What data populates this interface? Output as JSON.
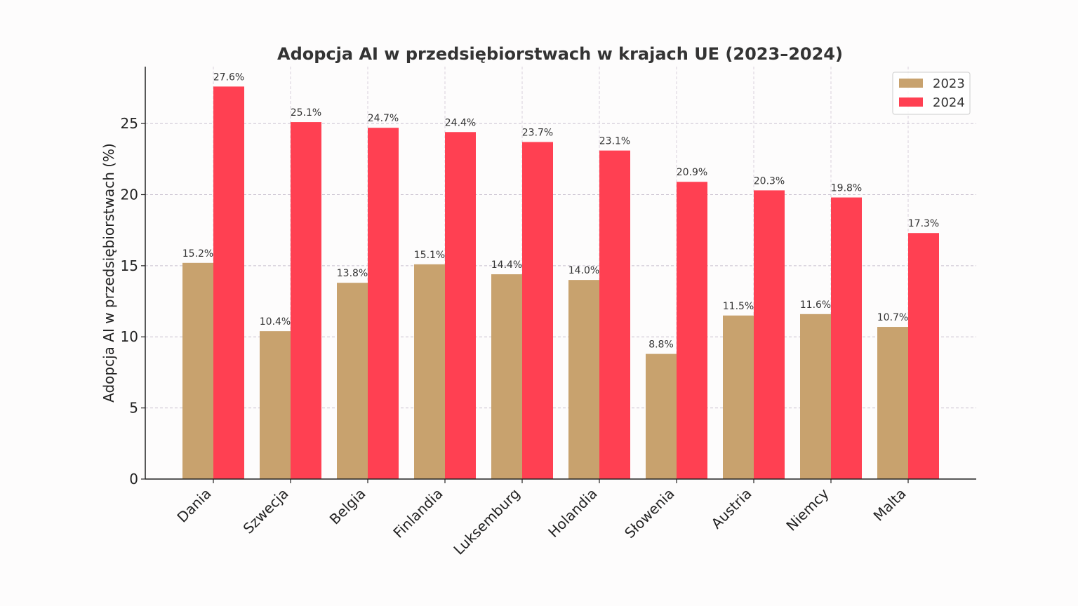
{
  "chart_data": {
    "type": "bar",
    "title": "Adopcja AI w przedsiębiorstwach w krajach UE (2023–2024)",
    "xlabel": "",
    "ylabel": "Adopcja AI w przedsiębiorstwach (%)",
    "ylim": [
      0,
      29
    ],
    "yticks": [
      "0",
      "5",
      "10",
      "15",
      "20",
      "25"
    ],
    "grid": true,
    "legend_position": "top-right",
    "categories": [
      "Dania",
      "Szwecja",
      "Belgia",
      "Finlandia",
      "Luksemburg",
      "Holandia",
      "Słowenia",
      "Austria",
      "Niemcy",
      "Malta"
    ],
    "series": [
      {
        "name": "2023",
        "color": "#c8a26e",
        "values": [
          15.2,
          10.4,
          13.8,
          15.1,
          14.4,
          14.0,
          8.8,
          11.5,
          11.6,
          10.7
        ],
        "labels": [
          "15.2%",
          "10.4%",
          "13.8%",
          "15.1%",
          "14.4%",
          "14.0%",
          "8.8%",
          "11.5%",
          "11.6%",
          "10.7%"
        ]
      },
      {
        "name": "2024",
        "color": "#ff4052",
        "values": [
          27.6,
          25.1,
          24.7,
          24.4,
          23.7,
          23.1,
          20.9,
          20.3,
          19.8,
          17.3
        ],
        "labels": [
          "27.6%",
          "25.1%",
          "24.7%",
          "24.4%",
          "23.7%",
          "23.1%",
          "20.9%",
          "20.3%",
          "19.8%",
          "17.3%"
        ]
      }
    ]
  }
}
